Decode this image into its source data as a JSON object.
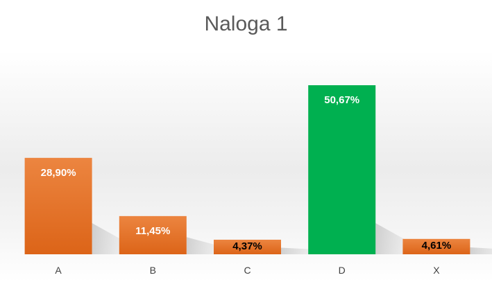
{
  "chart_data": {
    "type": "bar",
    "title": "Naloga 1",
    "categories": [
      "A",
      "B",
      "C",
      "D",
      "X"
    ],
    "values": [
      28.9,
      11.45,
      4.37,
      50.67,
      4.61
    ],
    "data_labels": [
      "28,90%",
      "11,45%",
      "4,37%",
      "50,67%",
      "4,61%"
    ],
    "ylim": [
      0,
      50.67
    ],
    "grid": false,
    "legend": "none",
    "colors": {
      "default_bar": "#e87a33",
      "default_bar_dark": "#dd6516",
      "highlight_bar": "#00b050",
      "highlight_category": "D",
      "label_on_tall_bar": "#ffffff",
      "label_on_short_bar": "#000000",
      "title": "#595959",
      "tick": "#404040"
    }
  }
}
